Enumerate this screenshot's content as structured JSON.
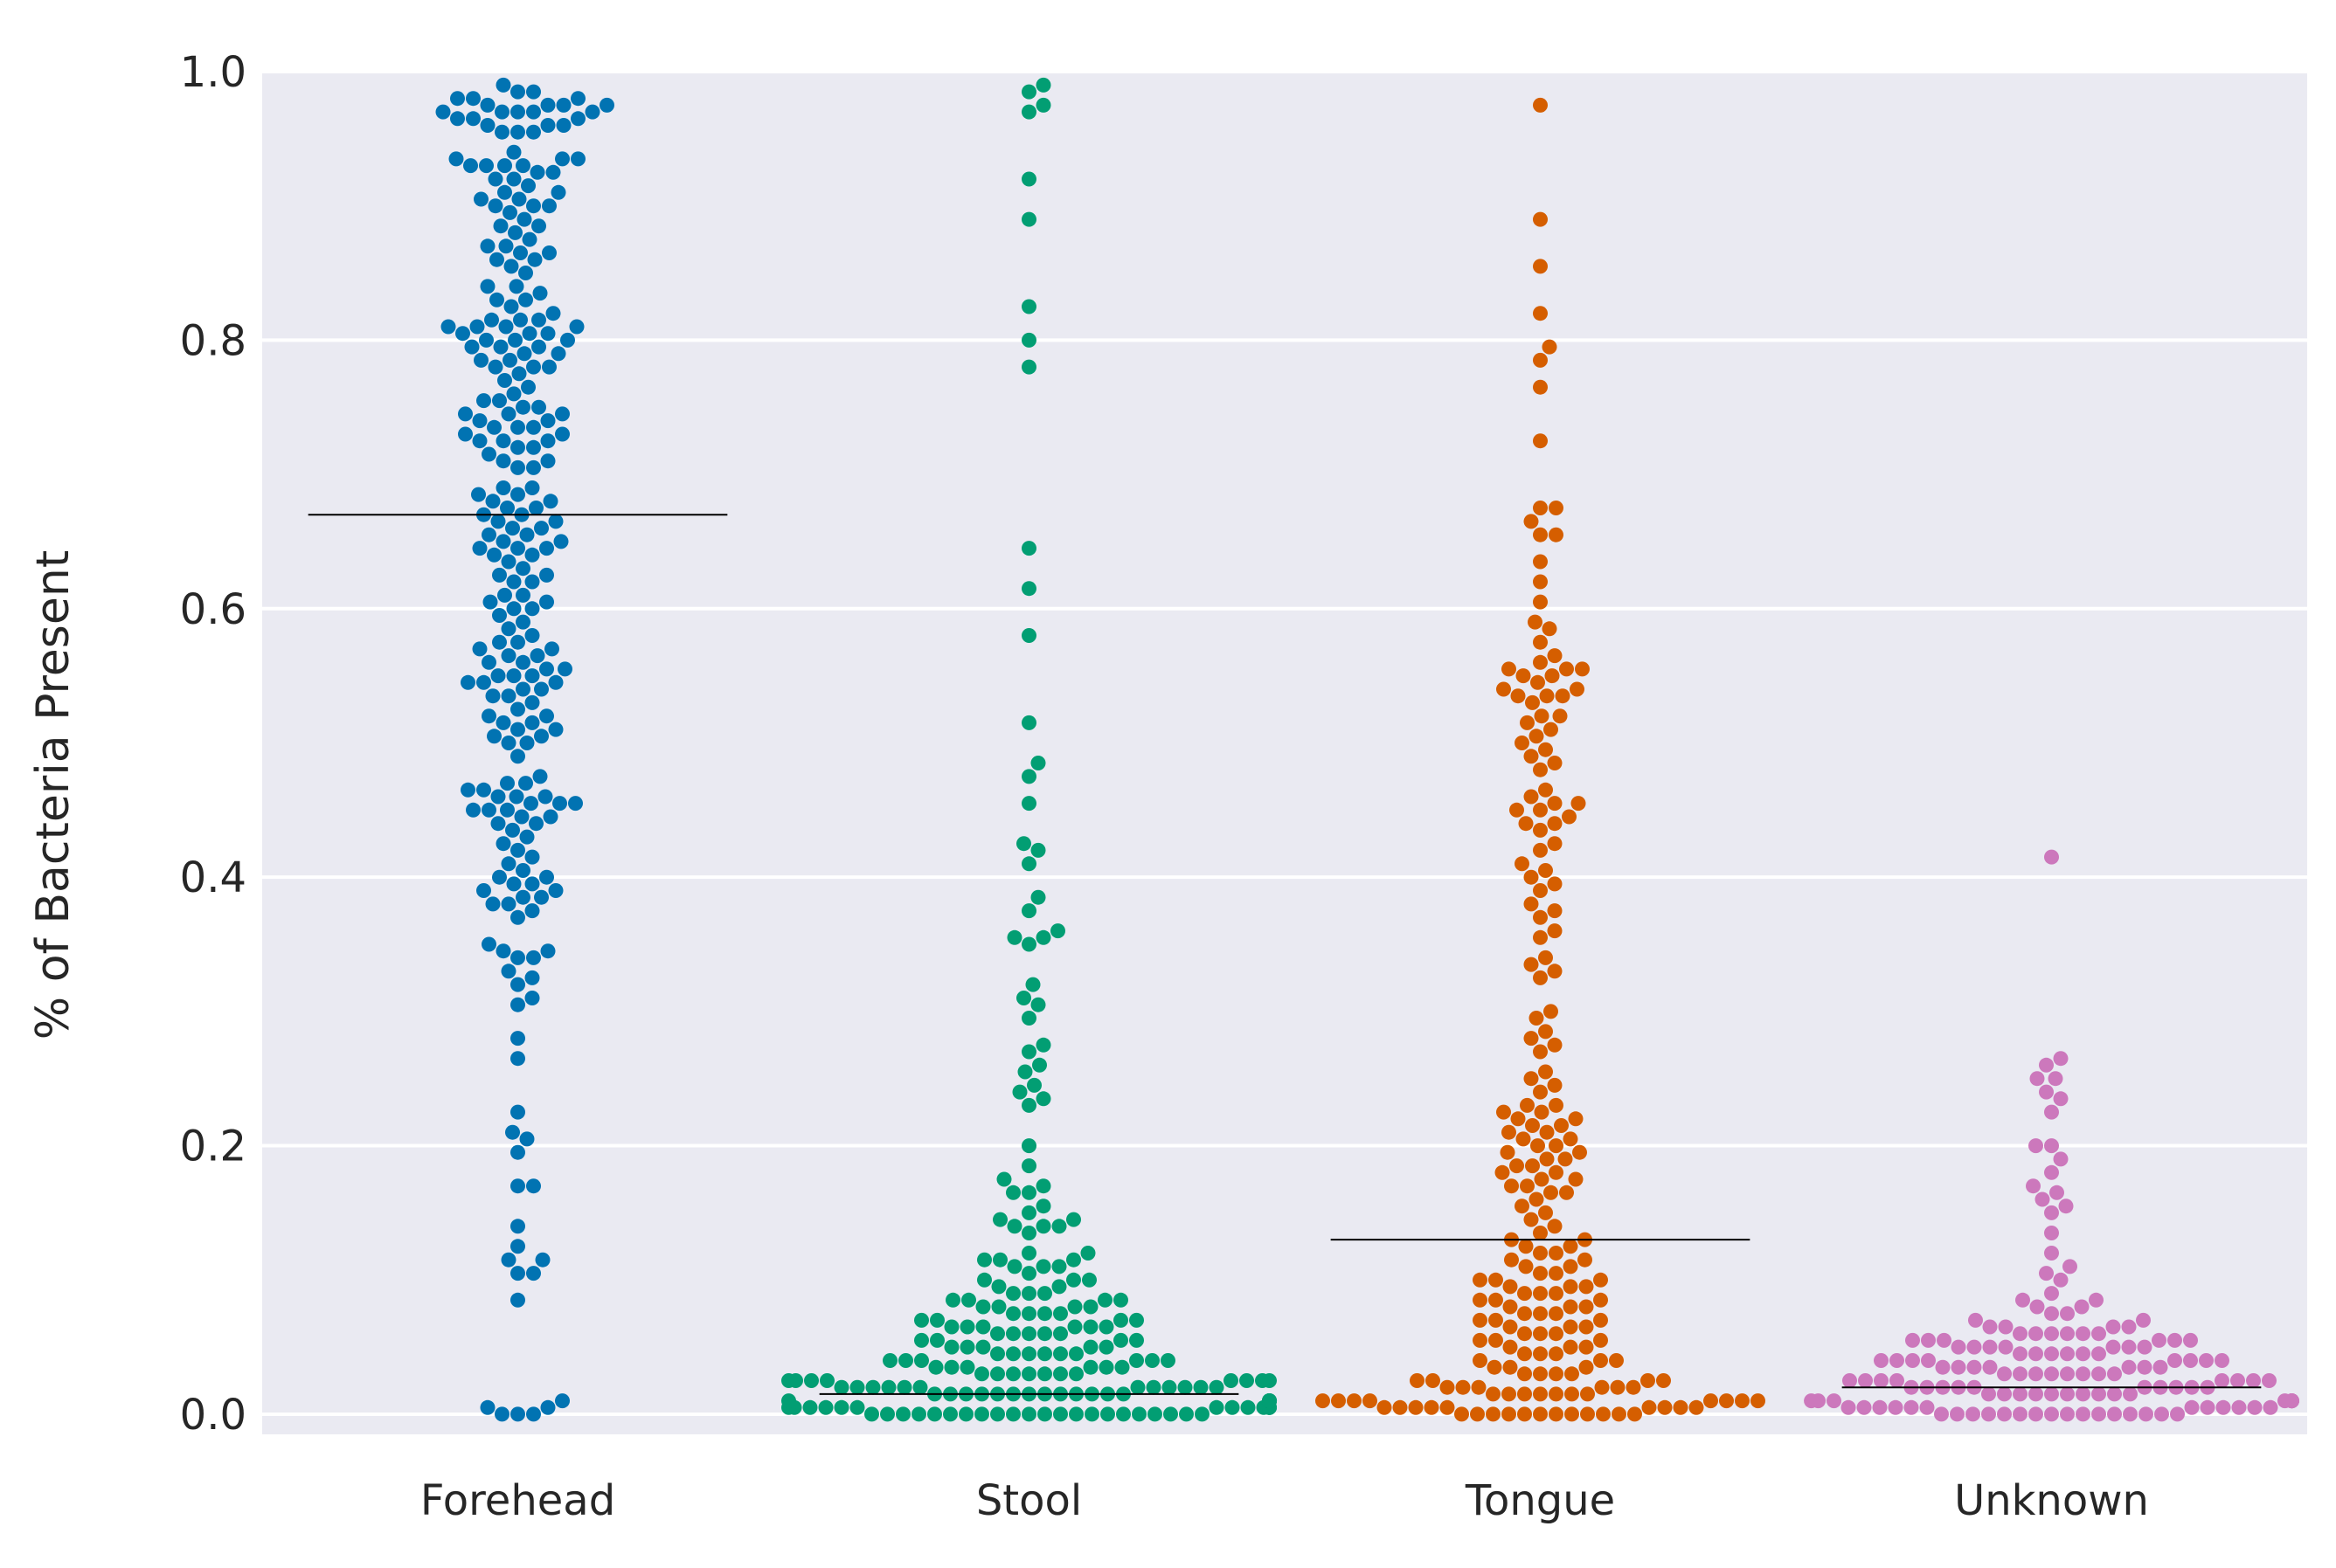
{
  "chart_data": {
    "type": "scatter",
    "subtype": "swarm",
    "title": "",
    "xlabel": "",
    "ylabel": "% of Bacteria Present",
    "ylim": [
      -0.015,
      1.0
    ],
    "yticks": [
      0.0,
      0.2,
      0.4,
      0.6,
      0.8,
      1.0
    ],
    "ytick_labels": [
      "0.0",
      "0.2",
      "0.4",
      "0.6",
      "0.8",
      "1.0"
    ],
    "grid": true,
    "legend": "none",
    "categories": [
      "Forehead",
      "Stool",
      "Tongue",
      "Unknown"
    ],
    "series": [
      {
        "color": "#0173b2",
        "median": 0.67,
        "values": [
          0.99,
          0.985,
          0.985,
          0.98,
          0.98,
          0.98,
          0.975,
          0.975,
          0.975,
          0.975,
          0.97,
          0.97,
          0.97,
          0.97,
          0.97,
          0.965,
          0.965,
          0.965,
          0.96,
          0.96,
          0.96,
          0.955,
          0.955,
          0.955,
          0.94,
          0.935,
          0.935,
          0.935,
          0.93,
          0.93,
          0.93,
          0.93,
          0.925,
          0.925,
          0.92,
          0.92,
          0.915,
          0.91,
          0.91,
          0.905,
          0.905,
          0.9,
          0.9,
          0.9,
          0.895,
          0.89,
          0.885,
          0.885,
          0.88,
          0.875,
          0.87,
          0.87,
          0.865,
          0.865,
          0.86,
          0.86,
          0.855,
          0.85,
          0.84,
          0.84,
          0.835,
          0.83,
          0.83,
          0.825,
          0.82,
          0.815,
          0.815,
          0.815,
          0.81,
          0.81,
          0.81,
          0.81,
          0.805,
          0.805,
          0.805,
          0.8,
          0.8,
          0.8,
          0.795,
          0.795,
          0.795,
          0.79,
          0.79,
          0.785,
          0.785,
          0.78,
          0.78,
          0.78,
          0.775,
          0.77,
          0.765,
          0.76,
          0.755,
          0.755,
          0.75,
          0.75,
          0.745,
          0.745,
          0.745,
          0.74,
          0.74,
          0.735,
          0.735,
          0.735,
          0.73,
          0.73,
          0.725,
          0.725,
          0.725,
          0.72,
          0.72,
          0.715,
          0.71,
          0.71,
          0.705,
          0.705,
          0.69,
          0.69,
          0.685,
          0.685,
          0.68,
          0.68,
          0.675,
          0.675,
          0.67,
          0.67,
          0.665,
          0.665,
          0.66,
          0.66,
          0.655,
          0.655,
          0.65,
          0.65,
          0.645,
          0.645,
          0.645,
          0.64,
          0.64,
          0.635,
          0.63,
          0.625,
          0.625,
          0.62,
          0.62,
          0.61,
          0.61,
          0.605,
          0.605,
          0.6,
          0.6,
          0.595,
          0.59,
          0.585,
          0.58,
          0.575,
          0.575,
          0.57,
          0.57,
          0.565,
          0.565,
          0.56,
          0.56,
          0.555,
          0.555,
          0.55,
          0.55,
          0.55,
          0.545,
          0.545,
          0.545,
          0.54,
          0.54,
          0.535,
          0.535,
          0.53,
          0.525,
          0.52,
          0.52,
          0.515,
          0.515,
          0.51,
          0.51,
          0.505,
          0.505,
          0.5,
          0.5,
          0.49,
          0.475,
          0.47,
          0.47,
          0.465,
          0.465,
          0.46,
          0.46,
          0.46,
          0.455,
          0.455,
          0.455,
          0.45,
          0.45,
          0.45,
          0.445,
          0.445,
          0.44,
          0.44,
          0.435,
          0.43,
          0.425,
          0.42,
          0.415,
          0.41,
          0.405,
          0.4,
          0.4,
          0.395,
          0.395,
          0.39,
          0.39,
          0.385,
          0.385,
          0.38,
          0.38,
          0.375,
          0.37,
          0.35,
          0.345,
          0.345,
          0.34,
          0.34,
          0.33,
          0.325,
          0.32,
          0.31,
          0.305,
          0.28,
          0.265,
          0.225,
          0.21,
          0.205,
          0.195,
          0.17,
          0.17,
          0.14,
          0.125,
          0.115,
          0.115,
          0.105,
          0.105,
          0.085,
          0.01,
          0.005,
          0.005,
          0.0,
          0.0,
          0.0
        ]
      },
      {
        "color": "#029e73",
        "median": 0.015,
        "values": [
          0.99,
          0.985,
          0.975,
          0.97,
          0.92,
          0.89,
          0.825,
          0.8,
          0.78,
          0.645,
          0.615,
          0.58,
          0.515,
          0.485,
          0.475,
          0.455,
          0.425,
          0.42,
          0.41,
          0.385,
          0.375,
          0.36,
          0.355,
          0.355,
          0.35,
          0.32,
          0.31,
          0.305,
          0.295,
          0.275,
          0.27,
          0.26,
          0.255,
          0.245,
          0.24,
          0.235,
          0.23,
          0.2,
          0.185,
          0.175,
          0.17,
          0.165,
          0.165,
          0.155,
          0.15,
          0.145,
          0.145,
          0.14,
          0.14,
          0.14,
          0.135,
          0.12,
          0.12,
          0.115,
          0.115,
          0.115,
          0.11,
          0.11,
          0.11,
          0.105,
          0.1,
          0.1,
          0.1,
          0.095,
          0.095,
          0.09,
          0.09,
          0.09,
          0.085,
          0.085,
          0.085,
          0.085,
          0.08,
          0.08,
          0.08,
          0.08,
          0.075,
          0.075,
          0.075,
          0.075,
          0.07,
          0.07,
          0.07,
          0.07,
          0.065,
          0.065,
          0.065,
          0.065,
          0.065,
          0.065,
          0.06,
          0.06,
          0.06,
          0.06,
          0.06,
          0.055,
          0.055,
          0.055,
          0.055,
          0.05,
          0.05,
          0.05,
          0.05,
          0.05,
          0.045,
          0.045,
          0.045,
          0.045,
          0.045,
          0.045,
          0.04,
          0.04,
          0.04,
          0.04,
          0.04,
          0.04,
          0.035,
          0.035,
          0.035,
          0.035,
          0.035,
          0.035,
          0.03,
          0.03,
          0.03,
          0.03,
          0.03,
          0.03,
          0.03,
          0.025,
          0.025,
          0.025,
          0.025,
          0.025,
          0.025,
          0.025,
          0.025,
          0.02,
          0.02,
          0.02,
          0.02,
          0.02,
          0.02,
          0.02,
          0.02,
          0.02,
          0.02,
          0.02,
          0.02,
          0.015,
          0.015,
          0.015,
          0.015,
          0.015,
          0.015,
          0.015,
          0.015,
          0.015,
          0.015,
          0.015,
          0.015,
          0.015,
          0.01,
          0.01,
          0.01,
          0.01,
          0.01,
          0.01,
          0.01,
          0.01,
          0.01,
          0.01,
          0.01,
          0.01,
          0.01,
          0.01,
          0.005,
          0.005,
          0.005,
          0.005,
          0.005,
          0.005,
          0.005,
          0.005,
          0.005,
          0.005,
          0.005,
          0.005,
          0.005,
          0.005,
          0.0,
          0.0,
          0.0,
          0.0,
          0.0,
          0.0,
          0.0,
          0.0,
          0.0,
          0.0,
          0.0,
          0.0,
          0.0,
          0.0,
          0.0,
          0.0,
          0.0,
          0.0,
          0.0,
          0.0,
          0.0,
          0.0
        ]
      },
      {
        "color": "#d55e00",
        "median": 0.13,
        "values": [
          0.975,
          0.89,
          0.855,
          0.82,
          0.795,
          0.785,
          0.765,
          0.725,
          0.675,
          0.675,
          0.665,
          0.655,
          0.655,
          0.635,
          0.62,
          0.605,
          0.59,
          0.585,
          0.575,
          0.565,
          0.56,
          0.555,
          0.555,
          0.555,
          0.55,
          0.55,
          0.545,
          0.54,
          0.54,
          0.535,
          0.535,
          0.535,
          0.53,
          0.52,
          0.52,
          0.515,
          0.51,
          0.505,
          0.5,
          0.495,
          0.49,
          0.485,
          0.48,
          0.465,
          0.46,
          0.455,
          0.455,
          0.45,
          0.45,
          0.445,
          0.44,
          0.44,
          0.435,
          0.425,
          0.42,
          0.41,
          0.405,
          0.4,
          0.395,
          0.39,
          0.38,
          0.375,
          0.37,
          0.36,
          0.355,
          0.34,
          0.335,
          0.33,
          0.325,
          0.3,
          0.295,
          0.285,
          0.28,
          0.275,
          0.27,
          0.255,
          0.25,
          0.245,
          0.24,
          0.23,
          0.23,
          0.225,
          0.225,
          0.22,
          0.22,
          0.215,
          0.215,
          0.21,
          0.21,
          0.205,
          0.205,
          0.2,
          0.2,
          0.195,
          0.195,
          0.19,
          0.19,
          0.185,
          0.185,
          0.18,
          0.18,
          0.175,
          0.175,
          0.17,
          0.17,
          0.165,
          0.165,
          0.16,
          0.155,
          0.15,
          0.145,
          0.14,
          0.135,
          0.13,
          0.13,
          0.125,
          0.125,
          0.12,
          0.12,
          0.115,
          0.115,
          0.11,
          0.11,
          0.105,
          0.105,
          0.1,
          0.1,
          0.1,
          0.095,
          0.095,
          0.095,
          0.09,
          0.09,
          0.09,
          0.085,
          0.085,
          0.085,
          0.08,
          0.08,
          0.08,
          0.075,
          0.075,
          0.075,
          0.07,
          0.07,
          0.07,
          0.065,
          0.065,
          0.065,
          0.06,
          0.06,
          0.06,
          0.055,
          0.055,
          0.055,
          0.05,
          0.05,
          0.05,
          0.045,
          0.045,
          0.045,
          0.04,
          0.04,
          0.04,
          0.035,
          0.035,
          0.035,
          0.03,
          0.03,
          0.03,
          0.03,
          0.025,
          0.025,
          0.025,
          0.025,
          0.02,
          0.02,
          0.02,
          0.02,
          0.02,
          0.02,
          0.015,
          0.015,
          0.015,
          0.015,
          0.015,
          0.015,
          0.015,
          0.01,
          0.01,
          0.01,
          0.01,
          0.01,
          0.01,
          0.01,
          0.01,
          0.005,
          0.005,
          0.005,
          0.005,
          0.005,
          0.005,
          0.005,
          0.005,
          0.005,
          0.0,
          0.0,
          0.0,
          0.0,
          0.0,
          0.0,
          0.0,
          0.0,
          0.0,
          0.0,
          0.0,
          0.0
        ]
      },
      {
        "color": "#cc78bc",
        "median": 0.02,
        "values": [
          0.415,
          0.265,
          0.26,
          0.25,
          0.25,
          0.24,
          0.235,
          0.225,
          0.2,
          0.2,
          0.19,
          0.18,
          0.17,
          0.165,
          0.16,
          0.155,
          0.15,
          0.135,
          0.12,
          0.11,
          0.105,
          0.1,
          0.09,
          0.085,
          0.085,
          0.08,
          0.08,
          0.075,
          0.075,
          0.07,
          0.07,
          0.065,
          0.065,
          0.065,
          0.065,
          0.06,
          0.06,
          0.06,
          0.06,
          0.06,
          0.06,
          0.055,
          0.055,
          0.055,
          0.055,
          0.055,
          0.055,
          0.05,
          0.05,
          0.05,
          0.05,
          0.05,
          0.05,
          0.05,
          0.045,
          0.045,
          0.045,
          0.045,
          0.045,
          0.045,
          0.04,
          0.04,
          0.04,
          0.04,
          0.04,
          0.04,
          0.04,
          0.04,
          0.035,
          0.035,
          0.035,
          0.035,
          0.035,
          0.035,
          0.035,
          0.03,
          0.03,
          0.03,
          0.03,
          0.03,
          0.03,
          0.03,
          0.03,
          0.025,
          0.025,
          0.025,
          0.025,
          0.025,
          0.025,
          0.025,
          0.025,
          0.02,
          0.02,
          0.02,
          0.02,
          0.02,
          0.02,
          0.02,
          0.02,
          0.02,
          0.02,
          0.015,
          0.015,
          0.015,
          0.015,
          0.015,
          0.015,
          0.015,
          0.015,
          0.015,
          0.015,
          0.01,
          0.01,
          0.01,
          0.01,
          0.01,
          0.01,
          0.01,
          0.01,
          0.01,
          0.01,
          0.01,
          0.005,
          0.005,
          0.005,
          0.005,
          0.005,
          0.005,
          0.005,
          0.005,
          0.005,
          0.005,
          0.005,
          0.005,
          0.0,
          0.0,
          0.0,
          0.0,
          0.0,
          0.0,
          0.0,
          0.0,
          0.0,
          0.0,
          0.0,
          0.0,
          0.0,
          0.0,
          0.0,
          0.0
        ]
      }
    ]
  }
}
